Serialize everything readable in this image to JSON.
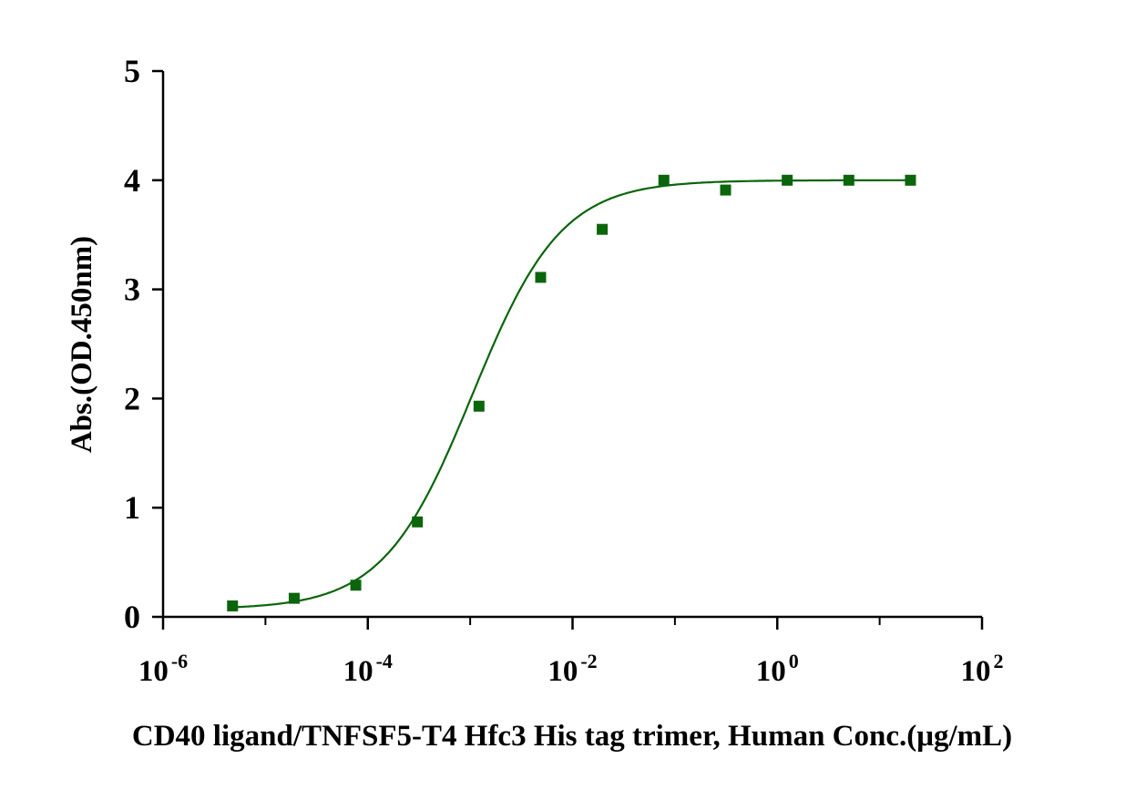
{
  "chart_data": {
    "type": "scatter",
    "title": "",
    "xlabel": "CD40 ligand/TNFSF5-T4 Hfc3 His tag trimer, Human Conc.(μg/mL)",
    "ylabel": "Abs.(OD.450nm)",
    "x_scale": "log",
    "xlim": [
      1e-06,
      100
    ],
    "ylim": [
      0,
      5
    ],
    "x_ticks": [
      {
        "value": 1e-06,
        "base": "10",
        "exp": "-6"
      },
      {
        "value": 0.0001,
        "base": "10",
        "exp": "-4"
      },
      {
        "value": 0.01,
        "base": "10",
        "exp": "-2"
      },
      {
        "value": 1,
        "base": "10",
        "exp": "0"
      },
      {
        "value": 100,
        "base": "10",
        "exp": "2"
      }
    ],
    "y_ticks": [
      "0",
      "1",
      "2",
      "3",
      "4",
      "5"
    ],
    "grid": false,
    "marker": "square",
    "color": "#0b650b",
    "series": [
      {
        "x": [
          4.77e-06,
          1.91e-05,
          7.63e-05,
          0.000305,
          0.00122,
          0.00488,
          0.0195,
          0.078,
          0.3125,
          1.25,
          5,
          20
        ],
        "y": [
          0.1,
          0.17,
          0.29,
          0.87,
          1.93,
          3.11,
          3.55,
          4.0,
          3.91,
          4.0,
          4.0,
          4.0
        ]
      }
    ],
    "fit_curve": {
      "model": "4PL",
      "bottom": 0.07,
      "top": 4.0,
      "ec50": 0.00105,
      "hill": 1.0
    }
  }
}
